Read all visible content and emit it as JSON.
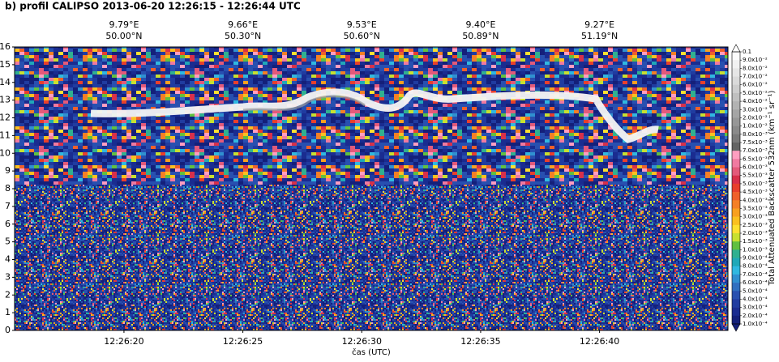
{
  "chart_data": {
    "type": "curtain",
    "title": "b) profil CALIPSO 2013-06-20  12:26:15 - 12:26:44 UTC",
    "xlabel": "čas (UTC)",
    "xlim": [
      15.4,
      45.4
    ],
    "xticks": [
      {
        "value": 20,
        "label": "12:26:20"
      },
      {
        "value": 25,
        "label": "12:26:25"
      },
      {
        "value": 30,
        "label": "12:26:30"
      },
      {
        "value": 35,
        "label": "12:26:35"
      },
      {
        "value": 40,
        "label": "12:26:40"
      }
    ],
    "top_labels": [
      {
        "lon": "9.79°E",
        "lat": "50.00°N"
      },
      {
        "lon": "9.66°E",
        "lat": "50.30°N"
      },
      {
        "lon": "9.53°E",
        "lat": "50.60°N"
      },
      {
        "lon": "9.40°E",
        "lat": "50.89°N"
      },
      {
        "lon": "9.27°E",
        "lat": "51.19°N"
      }
    ],
    "ylim": [
      0,
      16
    ],
    "yticks": [
      0,
      1,
      2,
      3,
      4,
      5,
      6,
      7,
      8,
      9,
      10,
      11,
      12,
      13,
      14,
      15,
      16
    ],
    "colorbar": {
      "label": "Total Attenuated Backscatter 532nm (km⁻¹ sr⁻¹)",
      "ticks": [
        {
          "value": 0.1,
          "label": "0.1"
        },
        {
          "value": 0.09,
          "label": "9.0x10⁻²"
        },
        {
          "value": 0.08,
          "label": "8.0x10⁻²"
        },
        {
          "value": 0.07,
          "label": "7.0x10⁻²"
        },
        {
          "value": 0.06,
          "label": "6.0x10⁻²"
        },
        {
          "value": 0.05,
          "label": "5.0x10⁻²"
        },
        {
          "value": 0.04,
          "label": "4.0x10⁻²"
        },
        {
          "value": 0.03,
          "label": "3.0x10⁻²"
        },
        {
          "value": 0.02,
          "label": "2.0x10⁻²"
        },
        {
          "value": 0.01,
          "label": "1.0x10⁻²"
        },
        {
          "value": 0.008,
          "label": "8.0x10⁻³"
        },
        {
          "value": 0.0075,
          "label": "7.5x10⁻³"
        },
        {
          "value": 0.007,
          "label": "7.0x10⁻³"
        },
        {
          "value": 0.0065,
          "label": "6.5x10⁻³"
        },
        {
          "value": 0.006,
          "label": "6.0x10⁻³"
        },
        {
          "value": 0.0055,
          "label": "5.5x10⁻³"
        },
        {
          "value": 0.005,
          "label": "5.0x10⁻³"
        },
        {
          "value": 0.0045,
          "label": "4.5x10⁻³"
        },
        {
          "value": 0.004,
          "label": "4.0x10⁻³"
        },
        {
          "value": 0.0035,
          "label": "3.5x10⁻³"
        },
        {
          "value": 0.003,
          "label": "3.0x10⁻³"
        },
        {
          "value": 0.0025,
          "label": "2.5x10⁻³"
        },
        {
          "value": 0.002,
          "label": "2.0x10⁻³"
        },
        {
          "value": 0.0015,
          "label": "1.5x10⁻³"
        },
        {
          "value": 0.001,
          "label": "1.0x10⁻³"
        },
        {
          "value": 0.0009,
          "label": "9.0x10⁻⁴"
        },
        {
          "value": 0.0008,
          "label": "8.0x10⁻⁴"
        },
        {
          "value": 0.0007,
          "label": "7.0x10⁻⁴"
        },
        {
          "value": 0.0006,
          "label": "6.0x10⁻⁴"
        },
        {
          "value": 0.0005,
          "label": "5.0x10⁻⁴"
        },
        {
          "value": 0.0004,
          "label": "4.0x10⁻⁴"
        },
        {
          "value": 0.0003,
          "label": "3.0x10⁻⁴"
        },
        {
          "value": 0.0002,
          "label": "2.0x10⁻⁴"
        },
        {
          "value": 0.0001,
          "label": "1.0x10⁻⁴"
        }
      ],
      "colors": [
        "#fcfcfc",
        "#f2f2f2",
        "#e6e6e6",
        "#dadada",
        "#cdcdcd",
        "#bfbfbf",
        "#b2b2b2",
        "#a5a5a5",
        "#979797",
        "#8a8a8a",
        "#7a7a7a",
        "#646464",
        "#ff9ec0",
        "#f07aa0",
        "#e35a7a",
        "#d8304a",
        "#e8402c",
        "#f0602a",
        "#f58025",
        "#f8a020",
        "#fac020",
        "#fde030",
        "#c8e030",
        "#60c040",
        "#30b090",
        "#20a8b8",
        "#30b8e0",
        "#3090d0",
        "#3070c0",
        "#2850b0",
        "#203ca0",
        "#1a2c90",
        "#14207a"
      ]
    }
  }
}
